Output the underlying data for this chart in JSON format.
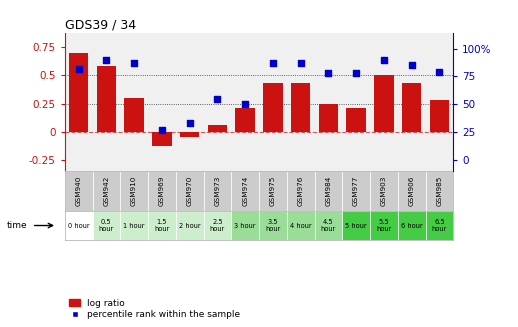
{
  "title": "GDS39 / 34",
  "samples": [
    "GSM940",
    "GSM942",
    "GSM910",
    "GSM969",
    "GSM970",
    "GSM973",
    "GSM974",
    "GSM975",
    "GSM976",
    "GSM984",
    "GSM977",
    "GSM903",
    "GSM906",
    "GSM985"
  ],
  "time_labels": [
    "0 hour",
    "0.5\nhour",
    "1 hour",
    "1.5\nhour",
    "2 hour",
    "2.5\nhour",
    "3 hour",
    "3.5\nhour",
    "4 hour",
    "4.5\nhour",
    "5 hour",
    "5.5\nhour",
    "6 hour",
    "6.5\nhour"
  ],
  "log_ratio": [
    0.7,
    0.58,
    0.3,
    -0.13,
    -0.05,
    0.06,
    0.21,
    0.43,
    0.43,
    0.25,
    0.21,
    0.5,
    0.43,
    0.28
  ],
  "percentile": [
    82,
    90,
    87,
    27,
    33,
    55,
    50,
    87,
    87,
    78,
    78,
    90,
    85,
    79
  ],
  "bar_color": "#cc1111",
  "dot_color": "#0000cc",
  "bg_color": "#f0f0f0",
  "yticks_left": [
    -0.25,
    0.0,
    0.25,
    0.5,
    0.75
  ],
  "yticks_right": [
    0,
    25,
    50,
    75,
    100
  ],
  "ylim_left": [
    -0.35,
    0.88
  ],
  "ylim_right": [
    -10.2,
    114.4
  ],
  "dotted_lines": [
    0.25,
    0.5
  ],
  "zero_line_color": "#cc3333",
  "time_bg_colors": [
    "#ffffff",
    "#cceecc",
    "#cceecc",
    "#cceecc",
    "#cceecc",
    "#cceecc",
    "#99dd99",
    "#99dd99",
    "#99dd99",
    "#99dd99",
    "#44cc44",
    "#44cc44",
    "#44cc44",
    "#44cc44"
  ]
}
